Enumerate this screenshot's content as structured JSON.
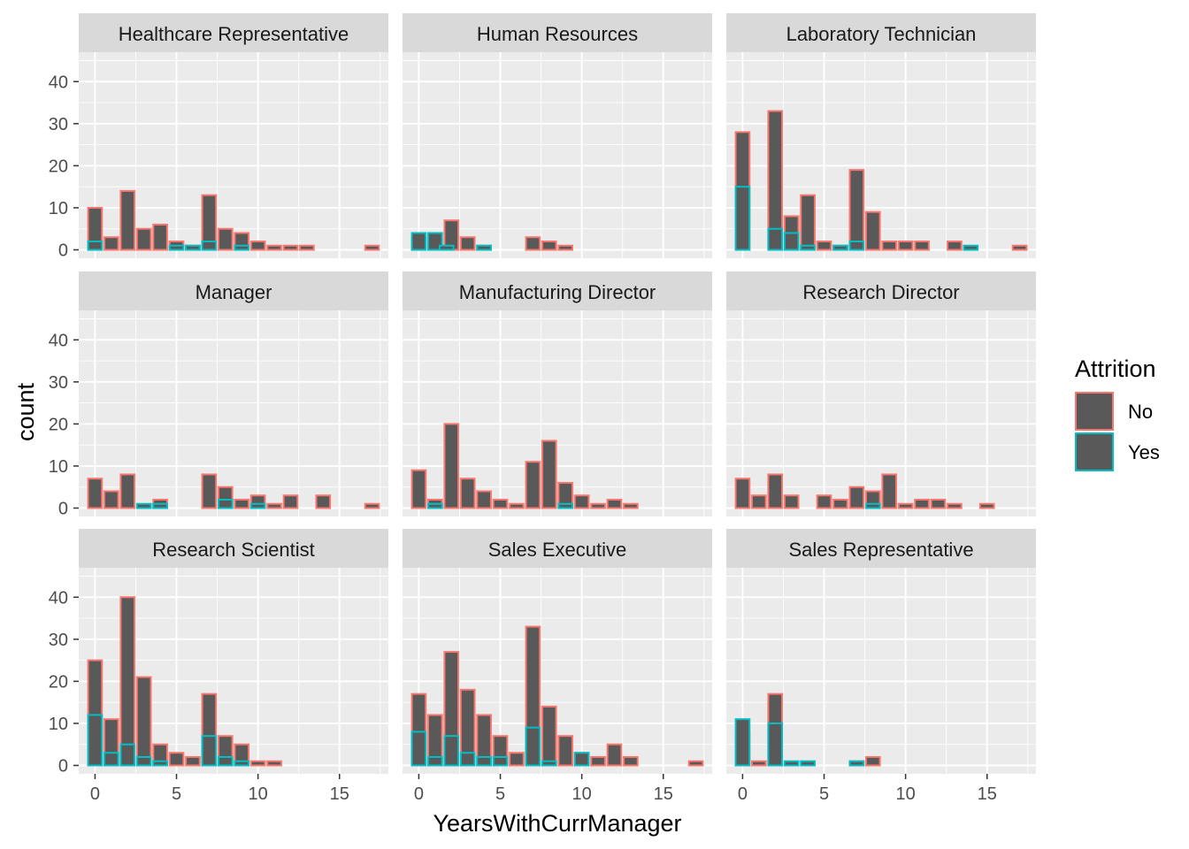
{
  "chart_data": {
    "type": "bar",
    "subtype": "faceted-histogram",
    "title": "",
    "xlabel": "YearsWithCurrManager",
    "ylabel": "count",
    "xlim": [
      -1,
      18
    ],
    "ylim": [
      -2,
      47
    ],
    "x_ticks": [
      0,
      5,
      10,
      15
    ],
    "y_ticks": [
      0,
      10,
      20,
      30,
      40
    ],
    "bin_width": 0.85,
    "grid": true,
    "facet_layout": "3x3",
    "legend": {
      "title": "Attrition",
      "position": "right",
      "entries": [
        {
          "label": "No",
          "color": "#F8766D"
        },
        {
          "label": "Yes",
          "color": "#00BFC4"
        }
      ]
    },
    "colors": {
      "fill": "#595959",
      "panel": "#EBEBEB",
      "strip": "#D9D9D9",
      "grid": "#FFFFFF"
    },
    "facets": [
      {
        "name": "Healthcare Representative",
        "no": [
          [
            0,
            10
          ],
          [
            1,
            3
          ],
          [
            2,
            14
          ],
          [
            3,
            5
          ],
          [
            4,
            6
          ],
          [
            5,
            2
          ],
          [
            6,
            1
          ],
          [
            7,
            13
          ],
          [
            8,
            5
          ],
          [
            9,
            4
          ],
          [
            10,
            2
          ],
          [
            11,
            1
          ],
          [
            12,
            1
          ],
          [
            13,
            1
          ],
          [
            17,
            1
          ]
        ],
        "yes": [
          [
            0,
            2
          ],
          [
            5,
            1
          ],
          [
            6,
            1
          ],
          [
            7,
            2
          ],
          [
            9,
            1
          ]
        ]
      },
      {
        "name": "Human Resources",
        "no": [
          [
            0,
            3
          ],
          [
            2,
            7
          ],
          [
            3,
            3
          ],
          [
            4,
            1
          ],
          [
            7,
            3
          ],
          [
            8,
            2
          ],
          [
            9,
            1
          ]
        ],
        "yes": [
          [
            0,
            4
          ],
          [
            1,
            4
          ],
          [
            1.7,
            1
          ],
          [
            4,
            1
          ]
        ]
      },
      {
        "name": "Laboratory Technician",
        "no": [
          [
            0,
            28
          ],
          [
            2,
            33
          ],
          [
            3,
            8
          ],
          [
            4,
            13
          ],
          [
            5,
            2
          ],
          [
            6,
            1
          ],
          [
            7,
            19
          ],
          [
            8,
            9
          ],
          [
            9,
            2
          ],
          [
            10,
            2
          ],
          [
            11,
            2
          ],
          [
            13,
            2
          ],
          [
            17,
            1
          ]
        ],
        "yes": [
          [
            0,
            15
          ],
          [
            2,
            5
          ],
          [
            3,
            4
          ],
          [
            4,
            1
          ],
          [
            6,
            1
          ],
          [
            7,
            2
          ],
          [
            14,
            1
          ]
        ]
      },
      {
        "name": "Manager",
        "no": [
          [
            0,
            7
          ],
          [
            1,
            4
          ],
          [
            2,
            8
          ],
          [
            4,
            2
          ],
          [
            7,
            8
          ],
          [
            8,
            5
          ],
          [
            9,
            2
          ],
          [
            10,
            3
          ],
          [
            11,
            1
          ],
          [
            12,
            3
          ],
          [
            14,
            3
          ],
          [
            17,
            1
          ]
        ],
        "yes": [
          [
            3,
            1
          ],
          [
            4,
            1
          ],
          [
            8,
            2
          ],
          [
            10,
            1
          ]
        ]
      },
      {
        "name": "Manufacturing Director",
        "no": [
          [
            0,
            9
          ],
          [
            1,
            2
          ],
          [
            2,
            20
          ],
          [
            3,
            7
          ],
          [
            4,
            4
          ],
          [
            5,
            2
          ],
          [
            6,
            1
          ],
          [
            7,
            11
          ],
          [
            8,
            16
          ],
          [
            9,
            6
          ],
          [
            10,
            3
          ],
          [
            11,
            1
          ],
          [
            12,
            2
          ],
          [
            13,
            1
          ]
        ],
        "yes": [
          [
            1,
            1
          ],
          [
            9,
            1
          ]
        ]
      },
      {
        "name": "Research Director",
        "no": [
          [
            0,
            7
          ],
          [
            1,
            3
          ],
          [
            2,
            8
          ],
          [
            3,
            3
          ],
          [
            5,
            3
          ],
          [
            6,
            2
          ],
          [
            7,
            5
          ],
          [
            8,
            4
          ],
          [
            9,
            8
          ],
          [
            10,
            1
          ],
          [
            11,
            2
          ],
          [
            12,
            2
          ],
          [
            13,
            1
          ],
          [
            15,
            1
          ]
        ],
        "yes": [
          [
            8,
            1
          ]
        ]
      },
      {
        "name": "Research Scientist",
        "no": [
          [
            0,
            25
          ],
          [
            1,
            11
          ],
          [
            2,
            40
          ],
          [
            3,
            21
          ],
          [
            4,
            5
          ],
          [
            5,
            3
          ],
          [
            6,
            2
          ],
          [
            7,
            17
          ],
          [
            8,
            7
          ],
          [
            9,
            5
          ],
          [
            10,
            1
          ],
          [
            11,
            1
          ]
        ],
        "yes": [
          [
            0,
            12
          ],
          [
            1,
            3
          ],
          [
            2,
            5
          ],
          [
            3,
            2
          ],
          [
            4,
            1
          ],
          [
            7,
            7
          ],
          [
            8,
            2
          ],
          [
            9,
            1
          ]
        ]
      },
      {
        "name": "Sales Executive",
        "no": [
          [
            0,
            17
          ],
          [
            1,
            12
          ],
          [
            2,
            27
          ],
          [
            3,
            18
          ],
          [
            4,
            12
          ],
          [
            5,
            7
          ],
          [
            6,
            3
          ],
          [
            7,
            33
          ],
          [
            8,
            14
          ],
          [
            9,
            7
          ],
          [
            10,
            3
          ],
          [
            11,
            2
          ],
          [
            12,
            5
          ],
          [
            13,
            2
          ],
          [
            17,
            1
          ]
        ],
        "yes": [
          [
            0,
            8
          ],
          [
            1,
            2
          ],
          [
            2,
            7
          ],
          [
            3,
            3
          ],
          [
            4,
            2
          ],
          [
            5,
            2
          ],
          [
            7,
            9
          ],
          [
            8,
            1
          ],
          [
            10,
            3
          ]
        ]
      },
      {
        "name": "Sales Representative",
        "no": [
          [
            0,
            8
          ],
          [
            1,
            1
          ],
          [
            2,
            17
          ],
          [
            7,
            1
          ],
          [
            8,
            2
          ]
        ],
        "yes": [
          [
            0,
            11
          ],
          [
            2,
            10
          ],
          [
            3,
            1
          ],
          [
            4,
            1
          ],
          [
            7,
            1
          ]
        ]
      }
    ]
  }
}
